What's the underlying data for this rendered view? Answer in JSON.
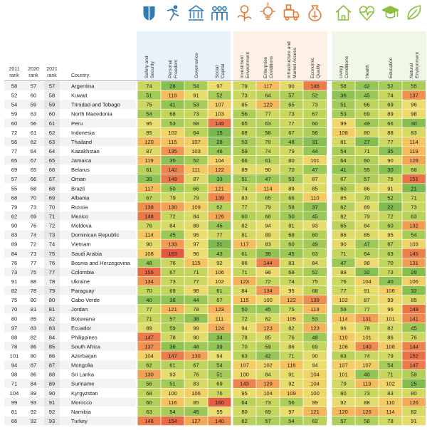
{
  "chart_data": {
    "type": "table",
    "rank_headers": [
      [
        "2011",
        "rank"
      ],
      [
        "2020",
        "rank"
      ],
      [
        "2021",
        "rank"
      ]
    ],
    "country_header": "Country",
    "columns": [
      {
        "label": "Safety and Security",
        "icon": "shield-icon"
      },
      {
        "label": "Personal Freedom",
        "icon": "running-person-icon"
      },
      {
        "label": "Governance",
        "icon": "government-building-icon"
      },
      {
        "label": "Social Capital",
        "icon": "people-group-icon"
      },
      {
        "label": "Investment Environment",
        "icon": "dollar-plant-icon"
      },
      {
        "label": "Enterprise Conditions",
        "icon": "lightbulb-icon"
      },
      {
        "label": "Infrastructure and Market Access",
        "icon": "truck-box-icon"
      },
      {
        "label": "Economic Quality",
        "icon": "money-bag-icon"
      },
      {
        "label": "Living Conditions",
        "icon": "house-icon"
      },
      {
        "label": "Health",
        "icon": "heart-pulse-icon"
      },
      {
        "label": "Education",
        "icon": "graduation-cap-icon"
      },
      {
        "label": "Natural Environment",
        "icon": "leaf-icon"
      }
    ],
    "group_colors": [
      "#2f7bb5",
      "#e8772e",
      "#8bbf3d"
    ],
    "rows": [
      {
        "r2011": "58",
        "r2020": "57",
        "r2021": "57",
        "country": "Argentina",
        "values": [
          74,
          28,
          54,
          97,
          79,
          117,
          90,
          146,
          58,
          42,
          52,
          55
        ]
      },
      {
        "r2011": "52",
        "r2020": "60",
        "r2021": "58",
        "country": "Kuwait",
        "values": [
          51,
          119,
          91,
          52,
          73,
          64,
          57,
          52,
          36,
          45,
          74,
          137
        ]
      },
      {
        "r2011": "54",
        "r2020": "59",
        "r2021": "59",
        "country": "Trinidad and Tobago",
        "values": [
          75,
          41,
          53,
          107,
          85,
          120,
          65,
          73,
          51,
          66,
          69,
          96
        ]
      },
      {
        "r2011": "59",
        "r2020": "63",
        "r2021": "60",
        "country": "North Macedonia",
        "values": [
          54,
          68,
          73,
          103,
          56,
          77,
          73,
          67,
          53,
          69,
          89,
          98
        ]
      },
      {
        "r2011": "60",
        "r2020": "56",
        "r2021": "61",
        "country": "Peru",
        "values": [
          95,
          53,
          68,
          149,
          65,
          63,
          77,
          60,
          99,
          49,
          66,
          30
        ]
      },
      {
        "r2011": "72",
        "r2020": "61",
        "r2021": "62",
        "country": "Indonesia",
        "values": [
          85,
          102,
          64,
          15,
          68,
          58,
          67,
          56,
          108,
          80,
          88,
          83
        ]
      },
      {
        "r2011": "56",
        "r2020": "62",
        "r2021": "63",
        "country": "Thailand",
        "values": [
          120,
          115,
          107,
          28,
          53,
          70,
          48,
          31,
          81,
          27,
          77,
          114
        ]
      },
      {
        "r2011": "77",
        "r2020": "64",
        "r2021": "64",
        "country": "Kazakhstan",
        "values": [
          87,
          135,
          103,
          46,
          59,
          74,
          79,
          44,
          54,
          71,
          35,
          119
        ]
      },
      {
        "r2011": "65",
        "r2020": "67",
        "r2021": "65",
        "country": "Jamaica",
        "values": [
          119,
          35,
          52,
          104,
          66,
          61,
          80,
          101,
          64,
          60,
          90,
          128
        ]
      },
      {
        "r2011": "69",
        "r2020": "65",
        "r2021": "66",
        "country": "Belarus",
        "values": [
          61,
          142,
          111,
          122,
          89,
          90,
          70,
          47,
          41,
          55,
          30,
          68
        ]
      },
      {
        "r2011": "57",
        "r2020": "66",
        "r2021": "67",
        "country": "Oman",
        "values": [
          39,
          149,
          87,
          33,
          51,
          47,
          53,
          87,
          67,
          57,
          76,
          151
        ]
      },
      {
        "r2011": "55",
        "r2020": "68",
        "r2021": "68",
        "country": "Brazil",
        "values": [
          117,
          50,
          66,
          121,
          74,
          114,
          89,
          85,
          60,
          86,
          91,
          21
        ]
      },
      {
        "r2011": "68",
        "r2020": "70",
        "r2021": "69",
        "country": "Albania",
        "values": [
          67,
          79,
          79,
          139,
          83,
          65,
          66,
          110,
          85,
          70,
          52,
          71
        ]
      },
      {
        "r2011": "79",
        "r2020": "73",
        "r2021": "70",
        "country": "Russia",
        "values": [
          138,
          130,
          109,
          62,
          77,
          79,
          58,
          37,
          62,
          89,
          22,
          73
        ]
      },
      {
        "r2011": "62",
        "r2020": "69",
        "r2021": "71",
        "country": "Mexico",
        "values": [
          148,
          72,
          84,
          126,
          60,
          68,
          50,
          45,
          82,
          79,
          72,
          63
        ]
      },
      {
        "r2011": "90",
        "r2020": "76",
        "r2021": "72",
        "country": "Moldova",
        "values": [
          76,
          84,
          89,
          45,
          82,
          94,
          81,
          93,
          65,
          84,
          60,
          132
        ]
      },
      {
        "r2011": "83",
        "r2020": "74",
        "r2021": "73",
        "country": "Dominican Republic",
        "values": [
          114,
          45,
          95,
          77,
          81,
          89,
          68,
          60,
          86,
          85,
          95,
          54
        ]
      },
      {
        "r2011": "89",
        "r2020": "72",
        "r2021": "74",
        "country": "Vietnam",
        "values": [
          90,
          133,
          97,
          21,
          117,
          83,
          60,
          49,
          90,
          47,
          67,
          103
        ]
      },
      {
        "r2011": "84",
        "r2020": "71",
        "r2021": "75",
        "country": "Saudi Arabia",
        "values": [
          108,
          163,
          96,
          43,
          61,
          38,
          45,
          63,
          71,
          64,
          63,
          145
        ]
      },
      {
        "r2011": "76",
        "r2020": "77",
        "r2021": "76",
        "country": "Bosnia and Herzegovina",
        "values": [
          48,
          76,
          115,
          92,
          86,
          144,
          83,
          84,
          47,
          98,
          70,
          131
        ]
      },
      {
        "r2011": "73",
        "r2020": "75",
        "r2021": "77",
        "country": "Colombia",
        "values": [
          155,
          67,
          71,
          106,
          71,
          98,
          68,
          52,
          88,
          32,
          73,
          29
        ]
      },
      {
        "r2011": "91",
        "r2020": "88",
        "r2021": "78",
        "country": "Ukraine",
        "values": [
          134,
          73,
          77,
          102,
          123,
          72,
          74,
          75,
          76,
          104,
          40,
          106
        ]
      },
      {
        "r2011": "82",
        "r2020": "78",
        "r2021": "79",
        "country": "Paraguay",
        "values": [
          70,
          69,
          98,
          61,
          84,
          134,
          95,
          68,
          77,
          91,
          106,
          32
        ]
      },
      {
        "r2011": "75",
        "r2020": "80",
        "r2021": "80",
        "country": "Cabo Verde",
        "values": [
          40,
          38,
          44,
          67,
          115,
          100,
          122,
          139,
          102,
          87,
          99,
          85
        ]
      },
      {
        "r2011": "70",
        "r2020": "81",
        "r2021": "81",
        "country": "Jordan",
        "values": [
          77,
          121,
          78,
          123,
          50,
          45,
          75,
          119,
          59,
          77,
          96,
          149
        ]
      },
      {
        "r2011": "80",
        "r2020": "85",
        "r2021": "82",
        "country": "Botswana",
        "values": [
          71,
          57,
          38,
          111,
          72,
          82,
          105,
          53,
          114,
          131,
          101,
          141
        ]
      },
      {
        "r2011": "97",
        "r2020": "83",
        "r2021": "83",
        "country": "Ecuador",
        "values": [
          89,
          59,
          99,
          124,
          94,
          123,
          82,
          123,
          96,
          78,
          82,
          45
        ]
      },
      {
        "r2011": "88",
        "r2020": "82",
        "r2021": "84",
        "country": "Philippines",
        "values": [
          147,
          78,
          90,
          34,
          78,
          85,
          76,
          48,
          110,
          101,
          86,
          76
        ]
      },
      {
        "r2011": "78",
        "r2020": "86",
        "r2021": "85",
        "country": "South Africa",
        "values": [
          137,
          36,
          48,
          39,
          70,
          59,
          86,
          69,
          106,
          140,
          108,
          144
        ]
      },
      {
        "r2011": "101",
        "r2020": "80",
        "r2021": "86",
        "country": "Azerbaijan",
        "values": [
          104,
          147,
          130,
          94,
          63,
          42,
          71,
          90,
          63,
          74,
          79,
          152
        ]
      },
      {
        "r2011": "94",
        "r2020": "87",
        "r2021": "87",
        "country": "Mongolia",
        "values": [
          62,
          61,
          67,
          54,
          107,
          102,
          116,
          94,
          107,
          107,
          54,
          147
        ]
      },
      {
        "r2011": "98",
        "r2020": "86",
        "r2021": "88",
        "country": "Sri Lanka",
        "values": [
          130,
          93,
          76,
          51,
          100,
          84,
          91,
          104,
          101,
          40,
          71,
          59
        ]
      },
      {
        "r2011": "71",
        "r2020": "84",
        "r2021": "89",
        "country": "Suriname",
        "values": [
          56,
          51,
          83,
          69,
          143,
          129,
          92,
          104,
          79,
          119,
          102,
          25
        ]
      },
      {
        "r2011": "104",
        "r2020": "89",
        "r2021": "90",
        "country": "Kyrgyzstan",
        "values": [
          68,
          100,
          106,
          76,
          95,
          104,
          109,
          100,
          80,
          73,
          83,
          80
        ]
      },
      {
        "r2011": "99",
        "r2020": "93",
        "r2021": "91",
        "country": "Morocco",
        "values": [
          60,
          116,
          85,
          160,
          64,
          73,
          56,
          99,
          92,
          88,
          110,
          126
        ]
      },
      {
        "r2011": "81",
        "r2020": "92",
        "r2021": "92",
        "country": "Namibia",
        "values": [
          63,
          54,
          45,
          95,
          80,
          69,
          97,
          121,
          120,
          126,
          114,
          82
        ]
      },
      {
        "r2011": "66",
        "r2020": "92",
        "r2021": "93",
        "country": "Turkey",
        "values": [
          146,
          154,
          127,
          140,
          62,
          57,
          54,
          62,
          57,
          58,
          78,
          91
        ]
      }
    ]
  }
}
